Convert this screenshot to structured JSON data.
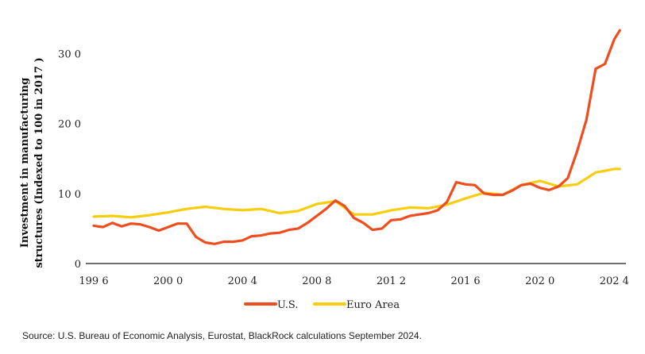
{
  "chart_data": {
    "type": "line",
    "title": "",
    "ylabel_lines": [
      "Investment in manufacturing",
      "structures (Indexed to 100 in 2017 )"
    ],
    "xlabel": "",
    "xlim": [
      1996,
      2024.5
    ],
    "ylim": [
      0,
      340
    ],
    "yticks": [
      0,
      100,
      200,
      300
    ],
    "ytick_labels": [
      "0",
      "10 0",
      "20 0",
      "30 0"
    ],
    "xticks": [
      1996,
      2000,
      2004,
      2008,
      2012,
      2016,
      2020,
      2024
    ],
    "xtick_labels": [
      "199 6",
      "200 0",
      "200 4",
      "200 8",
      "201 2",
      "201 6",
      "202 0",
      "202 4"
    ],
    "grid": false,
    "legend_position": "bottom-center",
    "series": [
      {
        "name": "U.S.",
        "color": "#ee4e1f",
        "x": [
          1996,
          1996.5,
          1997,
          1997.5,
          1998,
          1998.5,
          1999,
          1999.5,
          2000,
          2000.5,
          2001,
          2001.5,
          2002,
          2002.5,
          2003,
          2003.5,
          2004,
          2004.5,
          2005,
          2005.5,
          2006,
          2006.5,
          2007,
          2007.5,
          2008,
          2008.5,
          2009,
          2009.5,
          2010,
          2010.5,
          2011,
          2011.5,
          2012,
          2012.5,
          2013,
          2013.5,
          2014,
          2014.5,
          2015,
          2015.5,
          2016,
          2016.5,
          2017,
          2017.5,
          2018,
          2018.5,
          2019,
          2019.5,
          2020,
          2020.5,
          2021,
          2021.5,
          2022,
          2022.5,
          2023,
          2023.5,
          2024,
          2024.3
        ],
        "y": [
          54,
          52,
          58,
          53,
          57,
          56,
          52,
          47,
          52,
          57,
          57,
          38,
          30,
          28,
          31,
          31,
          33,
          39,
          40,
          43,
          44,
          48,
          50,
          58,
          68,
          78,
          90,
          82,
          65,
          58,
          48,
          50,
          62,
          63,
          68,
          70,
          72,
          76,
          88,
          116,
          113,
          112,
          100,
          98,
          98,
          104,
          112,
          114,
          108,
          105,
          110,
          122,
          160,
          205,
          278,
          285,
          320,
          333
        ]
      },
      {
        "name": "Euro Area",
        "color": "#f7cd0e",
        "x": [
          1996,
          1997,
          1998,
          1999,
          2000,
          2001,
          2002,
          2003,
          2004,
          2005,
          2006,
          2007,
          2008,
          2009,
          2010,
          2011,
          2012,
          2013,
          2014,
          2015,
          2016,
          2017,
          2018,
          2019,
          2020,
          2021,
          2022,
          2023,
          2024,
          2024.3
        ],
        "y": [
          67,
          68,
          66,
          69,
          73,
          78,
          81,
          78,
          76,
          78,
          72,
          75,
          85,
          89,
          70,
          70,
          76,
          80,
          79,
          84,
          93,
          101,
          98,
          112,
          118,
          110,
          113,
          130,
          135,
          135
        ]
      }
    ]
  },
  "source_note": "Source: U.S. Bureau of Economic Analysis, Eurostat, BlackRock calculations September 2024."
}
